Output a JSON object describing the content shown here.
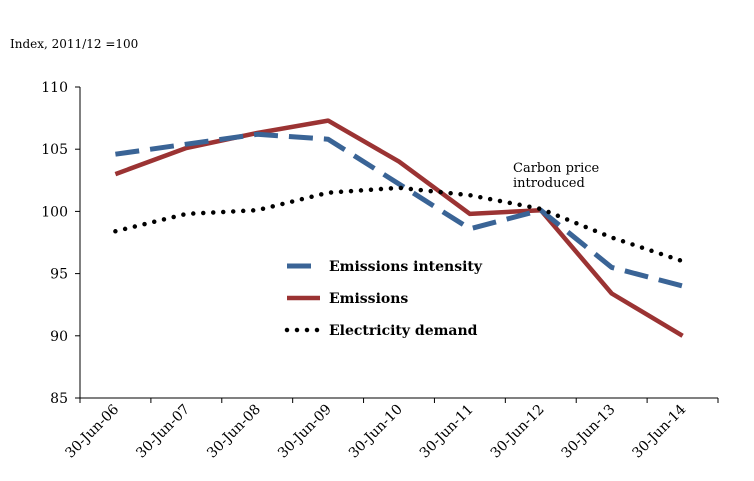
{
  "chart_data": {
    "type": "line",
    "title": "",
    "ylabel": "Index, 2011/12 =100",
    "xlabel": "",
    "categories": [
      "30-Jun-06",
      "30-Jun-07",
      "30-Jun-08",
      "30-Jun-09",
      "30-Jun-10",
      "30-Jun-11",
      "30-Jun-12",
      "30-Jun-13",
      "30-Jun-14"
    ],
    "ylim": [
      85,
      110
    ],
    "yticks": [
      "85",
      "90",
      "95",
      "100",
      "105",
      "110"
    ],
    "grid": false,
    "legend_position": "center",
    "series": [
      {
        "name": "Emissions intensity",
        "color": "#3A6496",
        "style": "dashed",
        "values": [
          104.6,
          105.4,
          106.2,
          105.8,
          102.2,
          98.6,
          100.1,
          95.5,
          94.0
        ]
      },
      {
        "name": "Emissions",
        "color": "#9B3333",
        "style": "solid",
        "values": [
          103.0,
          105.1,
          106.3,
          107.3,
          104.0,
          99.8,
          100.1,
          93.4,
          90.0
        ]
      },
      {
        "name": "Electricity demand",
        "color": "#000000",
        "style": "dotted",
        "values": [
          98.4,
          99.8,
          100.1,
          101.5,
          101.9,
          101.3,
          100.2,
          97.9,
          96.0
        ]
      }
    ],
    "annotations": [
      {
        "lines": [
          "Carbon price",
          "introduced"
        ]
      }
    ]
  }
}
